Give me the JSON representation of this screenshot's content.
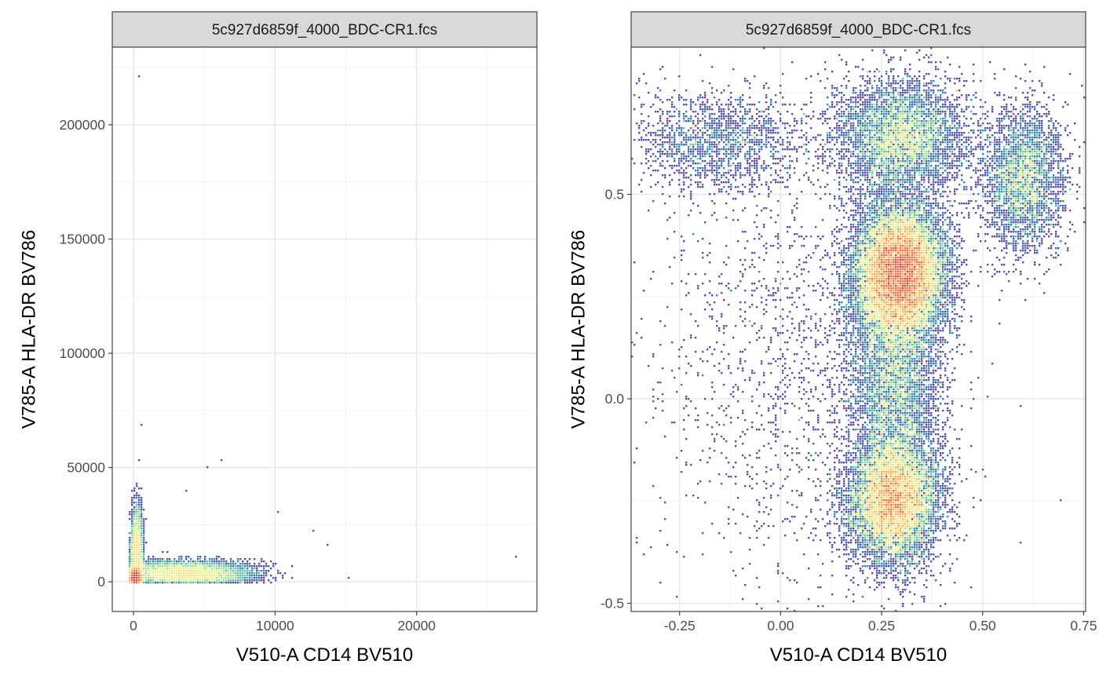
{
  "chart_data": [
    {
      "type": "scatter",
      "subtype": "hexbin-density",
      "title": "",
      "strip_label": "5c927d6859f_4000_BDC-CR1.fcs",
      "xlabel": "V510-A CD14 BV510",
      "ylabel": "V785-A HLA-DR BV786",
      "xlim": [
        -1500,
        28500
      ],
      "ylim": [
        -13000,
        234000
      ],
      "x_ticks": [
        0,
        10000,
        20000
      ],
      "x_tick_labels": [
        "0",
        "10000",
        "20000"
      ],
      "y_ticks": [
        0,
        50000,
        100000,
        150000,
        200000
      ],
      "y_tick_labels": [
        "0",
        "50000",
        "100000",
        "150000",
        "200000"
      ],
      "grid": true,
      "legend": "none",
      "color_scale": "Spectral (low = purple, high = red)",
      "populations": [
        {
          "name": "dense core near origin",
          "x_mean": 150,
          "y_mean": 1500,
          "x_sd": 200,
          "y_sd": 2000,
          "weight": 0.45
        },
        {
          "name": "vertical streak",
          "x_mean": 250,
          "y_mean": 12000,
          "x_sd": 200,
          "y_sd": 9000,
          "weight": 0.18
        },
        {
          "name": "horizontal smear",
          "x_mean": 3500,
          "y_mean": 3500,
          "x_sd": 2200,
          "y_sd": 2500,
          "weight": 0.37
        }
      ],
      "outliers": [
        {
          "x": 400,
          "y": 221000
        },
        {
          "x": 500,
          "y": 69000
        },
        {
          "x": 27000,
          "y": 11000
        },
        {
          "x": 15300,
          "y": 2000
        },
        {
          "x": 5300,
          "y": 50500
        },
        {
          "x": 6200,
          "y": 53500
        },
        {
          "x": 13800,
          "y": 16500
        },
        {
          "x": 10200,
          "y": 30000
        },
        {
          "x": 12700,
          "y": 22500
        },
        {
          "x": 3800,
          "y": 40000
        },
        {
          "x": 450,
          "y": 53000
        }
      ]
    },
    {
      "type": "scatter",
      "subtype": "hexbin-density",
      "title": "",
      "strip_label": "5c927d6859f_4000_BDC-CR1.fcs",
      "xlabel": "V510-A CD14 BV510",
      "ylabel": "V785-A HLA-DR BV786",
      "xlim": [
        -0.37,
        0.755
      ],
      "ylim": [
        -0.52,
        0.86
      ],
      "x_ticks": [
        -0.25,
        0.0,
        0.25,
        0.5,
        0.75
      ],
      "x_tick_labels": [
        "-0.25",
        "0.00",
        "0.25",
        "0.50",
        "0.75"
      ],
      "y_ticks": [
        -0.5,
        0.0,
        0.5
      ],
      "y_tick_labels": [
        "-0.5",
        "0.0",
        "0.5"
      ],
      "grid": true,
      "legend": "none",
      "color_scale": "Spectral (low = purple, high = red)",
      "populations": [
        {
          "name": "HLA-DR high cluster",
          "x_mean": 0.295,
          "y_mean": 0.31,
          "x_sd": 0.055,
          "y_sd": 0.08,
          "weight": 0.36
        },
        {
          "name": "lower cluster",
          "x_mean": 0.28,
          "y_mean": -0.25,
          "x_sd": 0.055,
          "y_sd": 0.075,
          "weight": 0.22
        },
        {
          "name": "connecting column",
          "x_mean": 0.285,
          "y_mean": 0.05,
          "x_sd": 0.055,
          "y_sd": 0.17,
          "weight": 0.14
        },
        {
          "name": "top-middle cluster",
          "x_mean": 0.3,
          "y_mean": 0.64,
          "x_sd": 0.08,
          "y_sd": 0.07,
          "weight": 0.12
        },
        {
          "name": "right cluster",
          "x_mean": 0.6,
          "y_mean": 0.54,
          "x_sd": 0.05,
          "y_sd": 0.085,
          "weight": 0.08
        },
        {
          "name": "top-left sparse",
          "x_mean": -0.15,
          "y_mean": 0.63,
          "x_sd": 0.1,
          "y_sd": 0.06,
          "weight": 0.04
        },
        {
          "name": "scattered background",
          "x_mean": 0.05,
          "y_mean": 0.1,
          "x_sd": 0.18,
          "y_sd": 0.3,
          "weight": 0.04
        }
      ]
    }
  ]
}
